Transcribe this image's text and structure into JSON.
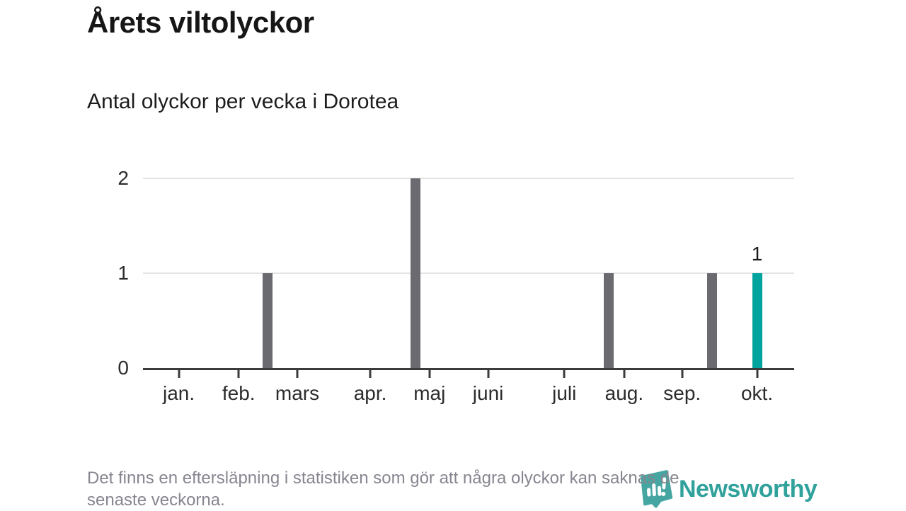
{
  "header": {
    "title": "Årets viltolyckor",
    "subtitle": "Antal olyckor per vecka i Dorotea"
  },
  "footer": {
    "note_lines": [
      "Det finns en eftersläpning i statistiken som gör att några olyckor kan saknas de",
      "senaste veckorna."
    ],
    "brand": "Newsworthy"
  },
  "colors": {
    "bar_default": "#6a6a70",
    "bar_highlight": "#00a49e",
    "grid": "#e4e4e4",
    "axis": "#3b3b3b",
    "brand_icon": "#45a6a1",
    "brand_text": "#30a19b",
    "muted_text": "#87858f"
  },
  "chart_data": {
    "type": "bar",
    "title": "Årets viltolyckor",
    "subtitle": "Antal olyckor per vecka i Dorotea",
    "description": "Weekly counts of wildlife accidents, Jan–Oct; most weeks are 0",
    "y_axis": {
      "ticks": [
        0,
        1,
        2
      ],
      "range": [
        0,
        2
      ],
      "grid": true
    },
    "x_axis": {
      "months": [
        {
          "label": "jan.",
          "pos_pct": 5.5
        },
        {
          "label": "feb.",
          "pos_pct": 14.7
        },
        {
          "label": "mars",
          "pos_pct": 23.7
        },
        {
          "label": "apr.",
          "pos_pct": 34.9
        },
        {
          "label": "maj",
          "pos_pct": 44.0
        },
        {
          "label": "juni",
          "pos_pct": 53.0
        },
        {
          "label": "juli",
          "pos_pct": 64.7
        },
        {
          "label": "aug.",
          "pos_pct": 73.9
        },
        {
          "label": "sep.",
          "pos_pct": 82.8
        },
        {
          "label": "okt.",
          "pos_pct": 94.3
        }
      ]
    },
    "bars": [
      {
        "week_of": "late feb.",
        "pos_pct": 19.1,
        "value": 1,
        "highlight": false,
        "label": null
      },
      {
        "week_of": "late apr.",
        "pos_pct": 41.9,
        "value": 2,
        "highlight": false,
        "label": null
      },
      {
        "week_of": "early aug.",
        "pos_pct": 71.5,
        "value": 1,
        "highlight": false,
        "label": null
      },
      {
        "week_of": "late sep.",
        "pos_pct": 87.4,
        "value": 1,
        "highlight": false,
        "label": null
      },
      {
        "week_of": "okt.",
        "pos_pct": 94.3,
        "value": 1,
        "highlight": true,
        "label": "1"
      }
    ],
    "legend": null
  }
}
